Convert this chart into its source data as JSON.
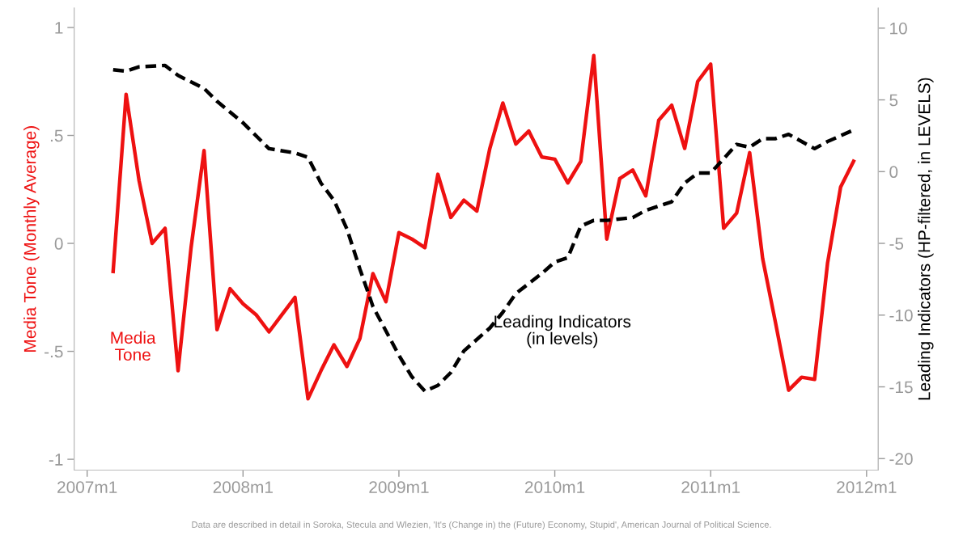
{
  "chart_data": {
    "type": "line",
    "ylabel": "Media Tone (Monthly Average)",
    "y2label": "Leading Indicators (HP-filtered, in LEVELS)",
    "xlim": [
      "2006-12-01",
      "2012-01-28"
    ],
    "xticks": [
      {
        "value": "2007-01",
        "label": "2007m1"
      },
      {
        "value": "2008-01",
        "label": "2008m1"
      },
      {
        "value": "2009-01",
        "label": "2009m1"
      },
      {
        "value": "2010-01",
        "label": "2010m1"
      },
      {
        "value": "2011-01",
        "label": "2011m1"
      },
      {
        "value": "2012-01",
        "label": "2012m1"
      }
    ],
    "ylim": [
      -1.05,
      1.09
    ],
    "yticks": [
      {
        "value": -1,
        "label": "-1"
      },
      {
        "value": -0.5,
        "label": "-.5"
      },
      {
        "value": 0,
        "label": "0"
      },
      {
        "value": 0.5,
        "label": ".5"
      },
      {
        "value": 1,
        "label": "1"
      }
    ],
    "y2lim": [
      -20.8,
      11.4
    ],
    "y2ticks": [
      -20,
      -15,
      -10,
      -5,
      0,
      5,
      10
    ],
    "grid": false,
    "legend": false,
    "series": [
      {
        "name": "Media\nTone",
        "color": "#ee1111",
        "line_style": "solid",
        "x": [
          "2007-03",
          "2007-04",
          "2007-05",
          "2007-06",
          "2007-07",
          "2007-08",
          "2007-09",
          "2007-10",
          "2007-11",
          "2007-12",
          "2008-01",
          "2008-02",
          "2008-03",
          "2008-04",
          "2008-05",
          "2008-06",
          "2008-07",
          "2008-08",
          "2008-09",
          "2008-10",
          "2008-11",
          "2008-12",
          "2009-01",
          "2009-02",
          "2009-03",
          "2009-04",
          "2009-05",
          "2009-06",
          "2009-07",
          "2009-08",
          "2009-09",
          "2009-10",
          "2009-11",
          "2009-12",
          "2010-01",
          "2010-02",
          "2010-03",
          "2010-04",
          "2010-05",
          "2010-06",
          "2010-07",
          "2010-08",
          "2010-09",
          "2010-10",
          "2010-11",
          "2010-12",
          "2011-01",
          "2011-02",
          "2011-03",
          "2011-04",
          "2011-05",
          "2011-06",
          "2011-07",
          "2011-08",
          "2011-09",
          "2011-10",
          "2011-11",
          "2011-12"
        ],
        "values": [
          -0.13,
          0.69,
          0.29,
          0.0,
          0.07,
          -0.59,
          -0.02,
          0.43,
          -0.4,
          -0.21,
          -0.28,
          -0.33,
          -0.41,
          -0.33,
          -0.25,
          -0.72,
          -0.59,
          -0.47,
          -0.57,
          -0.44,
          -0.14,
          -0.27,
          0.05,
          0.02,
          -0.02,
          0.32,
          0.12,
          0.2,
          0.15,
          0.44,
          0.65,
          0.46,
          0.52,
          0.4,
          0.39,
          0.28,
          0.38,
          0.87,
          0.02,
          0.3,
          0.34,
          0.22,
          0.57,
          0.64,
          0.44,
          0.75,
          0.83,
          0.07,
          0.14,
          0.42,
          -0.07,
          -0.37,
          -0.68,
          -0.62,
          -0.63,
          -0.09,
          0.26,
          0.38
        ]
      },
      {
        "name": "Leading Indicators\n(in levels)",
        "color": "#000000",
        "line_style": "dashed",
        "axis": "y2",
        "x": [
          "2007-03",
          "2007-04",
          "2007-05",
          "2007-07",
          "2007-08",
          "2007-10",
          "2007-11",
          "2008-01",
          "2008-03",
          "2008-05",
          "2008-06",
          "2008-07",
          "2008-08",
          "2008-09",
          "2008-10",
          "2008-11",
          "2009-01",
          "2009-02",
          "2009-03",
          "2009-04",
          "2009-05",
          "2009-06",
          "2009-08",
          "2009-09",
          "2009-10",
          "2009-12",
          "2010-01",
          "2010-02",
          "2010-03",
          "2010-04",
          "2010-05",
          "2010-07",
          "2010-08",
          "2010-10",
          "2010-11",
          "2010-12",
          "2011-01",
          "2011-02",
          "2011-03",
          "2011-04",
          "2011-05",
          "2011-06",
          "2011-07",
          "2011-08",
          "2011-09",
          "2011-10",
          "2011-11",
          "2011-12"
        ],
        "values": [
          7.1,
          7.0,
          7.3,
          7.4,
          6.7,
          5.8,
          4.9,
          3.4,
          1.6,
          1.3,
          1.0,
          -0.8,
          -2.0,
          -4.0,
          -6.8,
          -9.4,
          -12.8,
          -14.3,
          -15.3,
          -14.9,
          -14.0,
          -12.5,
          -10.9,
          -9.8,
          -8.5,
          -7.1,
          -6.3,
          -6.0,
          -3.8,
          -3.4,
          -3.4,
          -3.2,
          -2.7,
          -2.1,
          -0.8,
          -0.1,
          -0.1,
          0.9,
          1.9,
          1.7,
          2.3,
          2.3,
          2.6,
          2.1,
          1.6,
          2.1,
          2.5,
          2.9
        ]
      }
    ],
    "annotations": [
      "Data are described in detail in Soroka, Stecula and Wlezien, 'It's (Change in) the (Future) Economy, Stupid', American Journal of Political Science."
    ]
  }
}
